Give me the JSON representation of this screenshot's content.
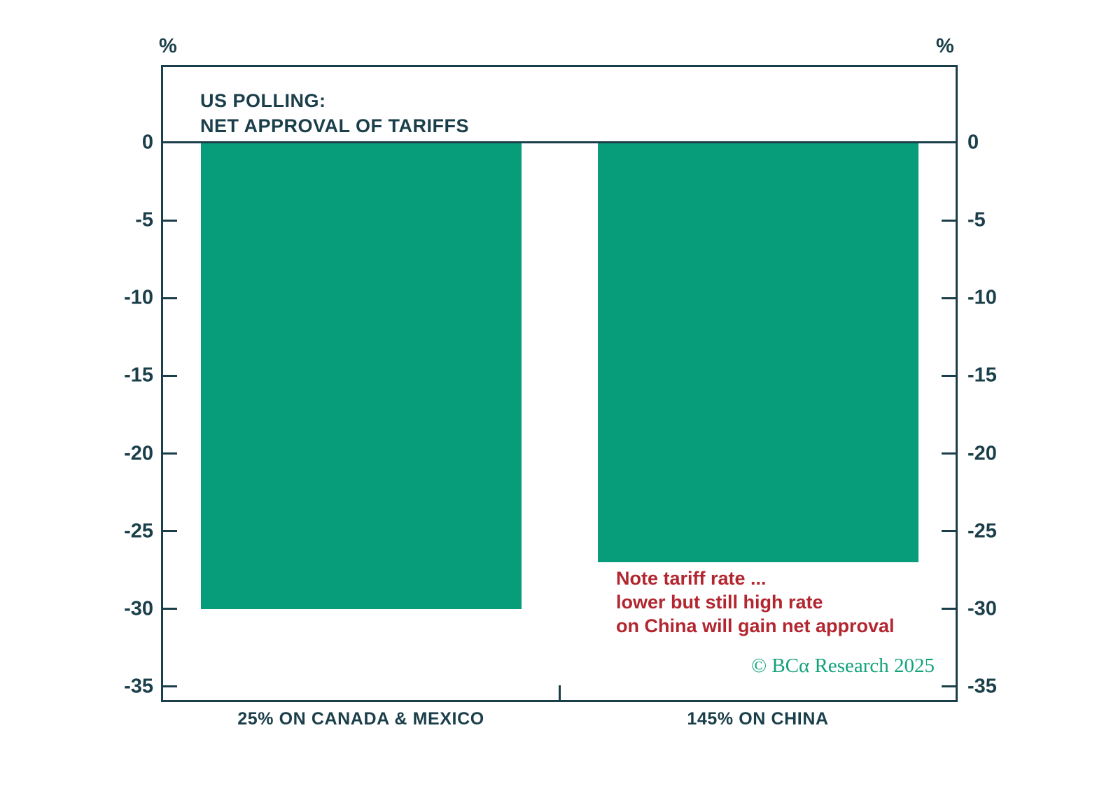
{
  "chart_data": {
    "type": "bar",
    "title_lines": [
      "US POLLING:",
      "NET APPROVAL OF TARIFFS"
    ],
    "unit": "%",
    "categories": [
      "25% ON CANADA & MEXICO",
      "145% ON CHINA"
    ],
    "values": [
      -30,
      -27
    ],
    "yticks": [
      0,
      -5,
      -10,
      -15,
      -20,
      -25,
      -30,
      -35
    ],
    "ylim": [
      4.9,
      -35.9
    ],
    "grid": false,
    "legend": "none",
    "bar_color": "#079d7b",
    "axis_color": "#1b3f4a"
  },
  "annotation": {
    "lines": [
      "Note tariff rate ...",
      "lower but still high rate",
      "on China will gain net approval"
    ],
    "color": "#b2262f"
  },
  "branding": {
    "copyright": "© BCα Research 2025",
    "color": "#12a37b"
  }
}
